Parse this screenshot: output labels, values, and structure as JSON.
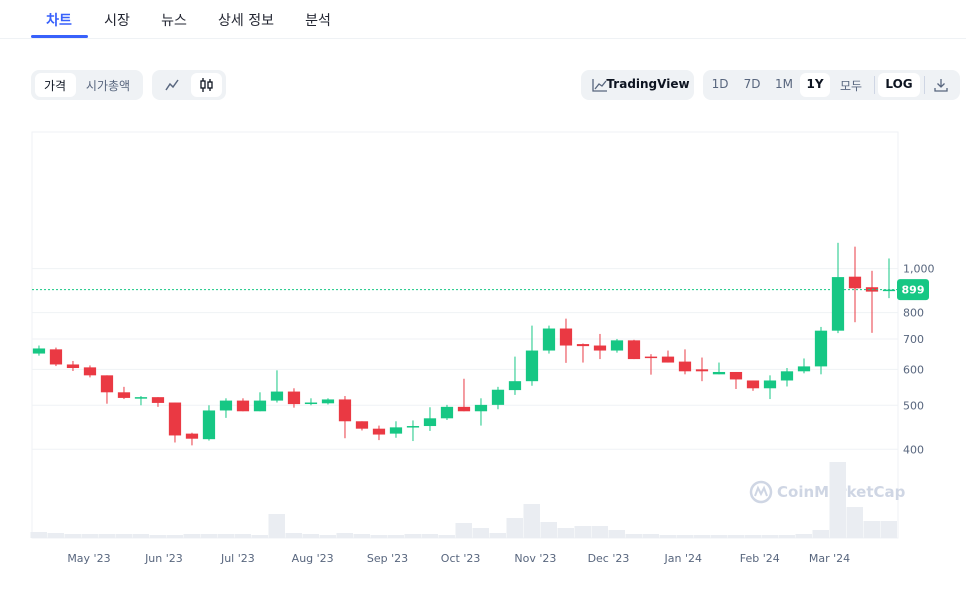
{
  "tabs": [
    "차트",
    "시장",
    "뉴스",
    "상세 정보",
    "분석"
  ],
  "controls": {
    "metric": [
      "가격",
      "시가총액"
    ],
    "tradingview": "TradingView",
    "ranges": [
      "1D",
      "7D",
      "1M",
      "1Y",
      "모두"
    ],
    "log": "LOG"
  },
  "chart_data": {
    "type": "candlestick",
    "log_scale": true,
    "grid": true,
    "up_color": "#16c784",
    "down_color": "#ea3943",
    "volume_color": "#eaedf2",
    "ylim": [
      255,
      2000
    ],
    "yticks": [
      400,
      500,
      600,
      700,
      800,
      {
        "value": 1000,
        "label": "1,000"
      }
    ],
    "xlim": [
      -0.41,
      50.53
    ],
    "xticks": [
      {
        "value": 2.94,
        "label": "May '23"
      },
      {
        "value": 7.35,
        "label": "Jun '23"
      },
      {
        "value": 11.7,
        "label": "Jul '23"
      },
      {
        "value": 16.1,
        "label": "Aug '23"
      },
      {
        "value": 20.5,
        "label": "Sep '23"
      },
      {
        "value": 24.8,
        "label": "Oct '23"
      },
      {
        "value": 29.2,
        "label": "Nov '23"
      },
      {
        "value": 33.5,
        "label": "Dec '23"
      },
      {
        "value": 37.9,
        "label": "Jan '24"
      },
      {
        "value": 42.4,
        "label": "Feb '24"
      },
      {
        "value": 46.5,
        "label": "Mar '24"
      }
    ],
    "open": [
      650,
      664,
      615,
      606,
      582,
      534,
      518,
      521,
      507,
      433,
      421,
      487,
      512,
      485,
      512,
      536,
      505,
      505,
      515,
      461,
      444,
      433,
      448,
      450,
      468,
      496,
      485,
      501,
      540,
      565,
      660,
      738,
      682,
      677,
      660,
      695,
      640,
      640,
      624,
      600,
      585,
      592,
      567,
      545,
      567,
      594,
      609,
      730,
      960,
      910,
      894
    ],
    "high": [
      677,
      670,
      626,
      612,
      582,
      549,
      524,
      521,
      507,
      435,
      500,
      518,
      518,
      534,
      597,
      545,
      518,
      518,
      524,
      461,
      451,
      461,
      463,
      495,
      501,
      572,
      518,
      549,
      640,
      749,
      749,
      776,
      684,
      718,
      700,
      697,
      648,
      660,
      664,
      637,
      621,
      592,
      567,
      582,
      604,
      634,
      744,
      1140,
      1118,
      989,
      1053
    ],
    "low": [
      643,
      610,
      595,
      576,
      504,
      516,
      500,
      496,
      414,
      408,
      418,
      469,
      485,
      485,
      507,
      494,
      500,
      502,
      423,
      440,
      419,
      424,
      417,
      439,
      464,
      485,
      451,
      490,
      527,
      552,
      650,
      620,
      621,
      632,
      653,
      632,
      584,
      621,
      585,
      565,
      585,
      543,
      538,
      516,
      550,
      588,
      585,
      721,
      762,
      722,
      861
    ],
    "close": [
      667,
      615,
      604,
      582,
      534,
      519,
      521,
      506,
      429,
      422,
      487,
      512,
      485,
      512,
      536,
      503,
      507,
      515,
      461,
      444,
      431,
      447,
      450,
      468,
      496,
      485,
      501,
      541,
      565,
      660,
      738,
      677,
      675,
      660,
      695,
      632,
      638,
      621,
      594,
      594,
      592,
      570,
      545,
      567,
      594,
      609,
      730,
      958,
      905,
      890,
      899
    ],
    "volume": [
      6,
      5,
      4,
      4,
      4,
      4,
      4,
      3,
      3,
      4,
      4,
      4,
      4,
      3,
      24,
      5,
      4,
      3,
      5,
      4,
      3,
      3,
      4,
      4,
      3,
      15,
      10,
      5,
      20,
      34,
      16,
      10,
      12,
      12,
      8,
      4,
      4,
      3,
      3,
      3,
      3,
      3,
      3,
      3,
      3,
      4,
      8,
      76,
      31,
      17,
      17
    ],
    "volume_lim": [
      0,
      100
    ],
    "current_price": 899,
    "watermark": "CoinMarketCap"
  }
}
